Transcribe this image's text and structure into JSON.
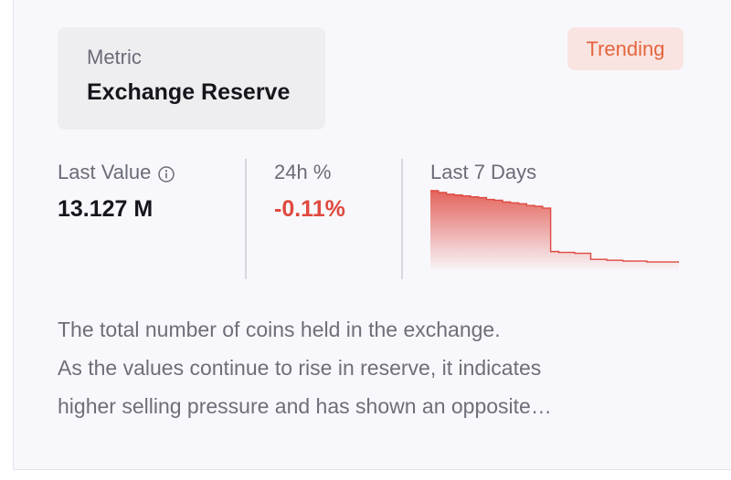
{
  "metric": {
    "label": "Metric",
    "name": "Exchange Reserve"
  },
  "badge": {
    "label": "Trending",
    "bg_color": "#f9e4e1",
    "text_color": "#e5653e"
  },
  "stats": {
    "last_value": {
      "label": "Last Value",
      "value": "13.127 M",
      "icon": "info-icon"
    },
    "change_24h": {
      "label": "24h %",
      "value": "-0.11%",
      "color": "#e0493f"
    },
    "last_7_days": {
      "label": "Last 7 Days"
    }
  },
  "chart_data": {
    "type": "area",
    "title": "",
    "xlabel": "",
    "ylabel": "",
    "grid": false,
    "line_color": "#e0493f",
    "series": [
      {
        "values": [
          13.21,
          13.208,
          13.206,
          13.205,
          13.204,
          13.203,
          13.202,
          13.2,
          13.199,
          13.197,
          13.196,
          13.195,
          13.193,
          13.192,
          13.19,
          13.14,
          13.139,
          13.139,
          13.138,
          13.138,
          13.131,
          13.131,
          13.13,
          13.13,
          13.129,
          13.129,
          13.129,
          13.128,
          13.128,
          13.128,
          13.128,
          13.127
        ]
      }
    ]
  },
  "description": {
    "lines": [
      "The total number of coins held in the exchange.",
      "As the values continue to rise in reserve, it indicates",
      "higher selling pressure and has shown an opposite…"
    ]
  }
}
